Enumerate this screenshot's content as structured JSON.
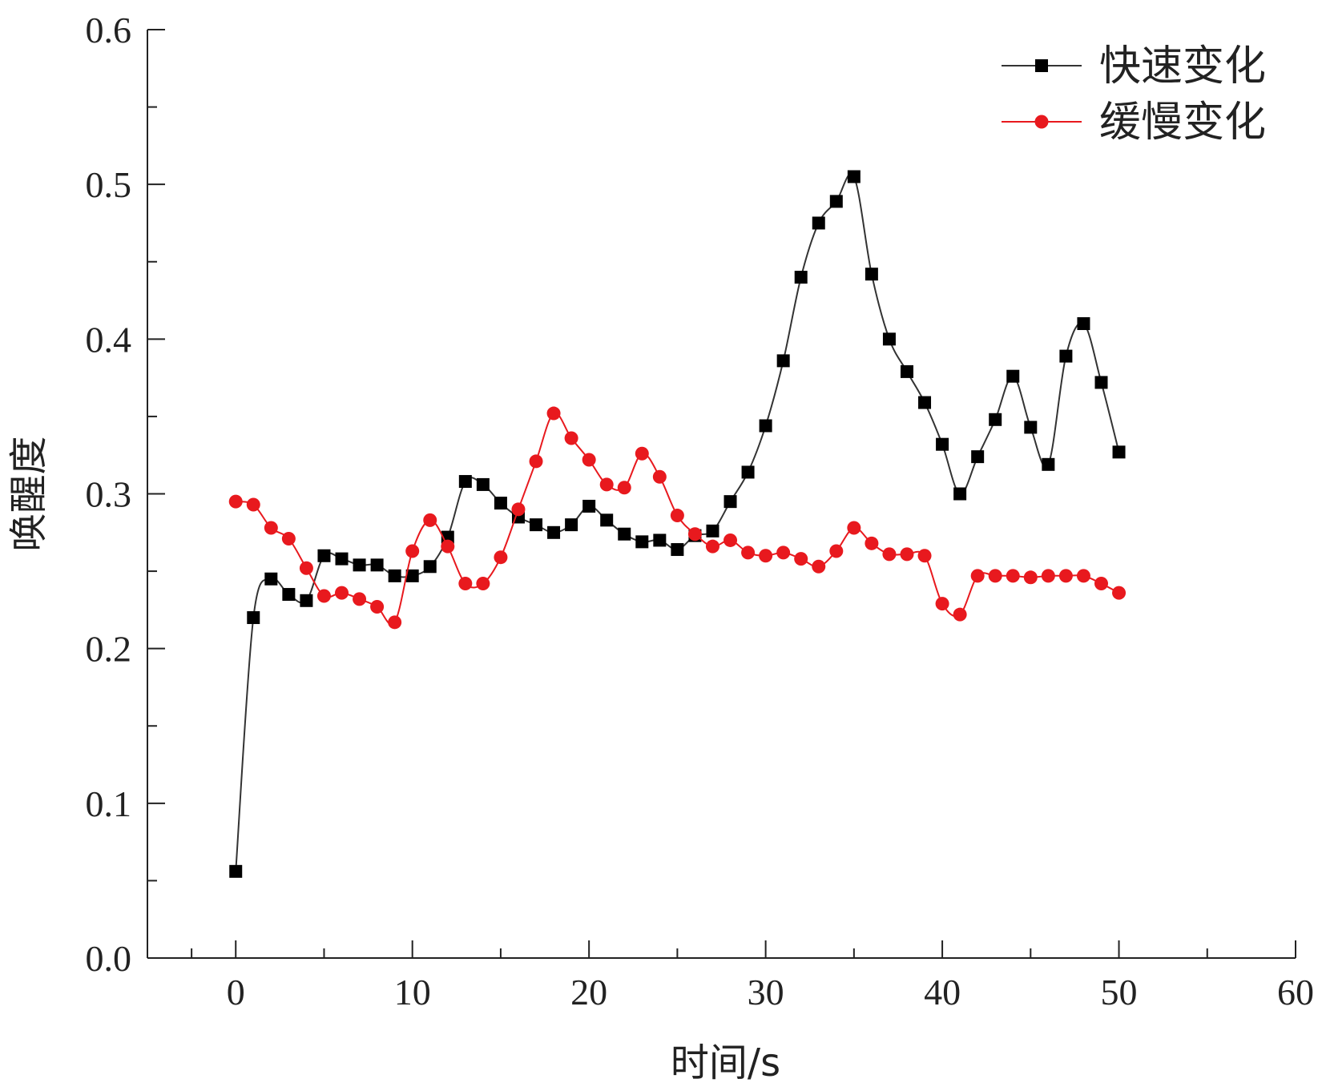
{
  "chart_data": {
    "type": "line",
    "title": "",
    "xlabel": "时间/s",
    "ylabel": "唤醒度",
    "xlim": [
      -5,
      60
    ],
    "ylim": [
      0.0,
      0.6
    ],
    "x_ticks": [
      0,
      10,
      20,
      30,
      40,
      50,
      60
    ],
    "y_ticks": [
      0.0,
      0.1,
      0.2,
      0.3,
      0.4,
      0.5,
      0.6
    ],
    "x_tick_labels": [
      "0",
      "10",
      "20",
      "30",
      "40",
      "50",
      "60"
    ],
    "y_tick_labels": [
      "0.0",
      "0.1",
      "0.2",
      "0.3",
      "0.4",
      "0.5",
      "0.6"
    ],
    "grid": false,
    "legend_position": "top-right",
    "x": [
      0,
      1,
      2,
      3,
      4,
      5,
      6,
      7,
      8,
      9,
      10,
      11,
      12,
      13,
      14,
      15,
      16,
      17,
      18,
      19,
      20,
      21,
      22,
      23,
      24,
      25,
      26,
      27,
      28,
      29,
      30,
      31,
      32,
      33,
      34,
      35,
      36,
      37,
      38,
      39,
      40,
      41,
      42,
      43,
      44,
      45,
      46,
      47,
      48,
      49,
      50
    ],
    "series": [
      {
        "name": "快速变化",
        "color": "#000000",
        "line_color": "#333333",
        "marker": "square",
        "values": [
          0.056,
          0.22,
          0.245,
          0.235,
          0.231,
          0.26,
          0.258,
          0.254,
          0.254,
          0.247,
          0.247,
          0.253,
          0.272,
          0.308,
          0.306,
          0.294,
          0.285,
          0.28,
          0.275,
          0.28,
          0.292,
          0.283,
          0.274,
          0.269,
          0.27,
          0.264,
          0.273,
          0.276,
          0.295,
          0.314,
          0.344,
          0.386,
          0.44,
          0.475,
          0.489,
          0.505,
          0.442,
          0.4,
          0.379,
          0.359,
          0.332,
          0.3,
          0.324,
          0.348,
          0.376,
          0.343,
          0.319,
          0.389,
          0.41,
          0.372,
          0.327
        ]
      },
      {
        "name": "缓慢变化",
        "color": "#e8191e",
        "line_color": "#e8191e",
        "marker": "circle",
        "values": [
          0.295,
          0.293,
          0.278,
          0.271,
          0.252,
          0.234,
          0.236,
          0.232,
          0.227,
          0.217,
          0.263,
          0.283,
          0.266,
          0.242,
          0.242,
          0.259,
          0.29,
          0.321,
          0.352,
          0.336,
          0.322,
          0.306,
          0.304,
          0.326,
          0.311,
          0.286,
          0.274,
          0.266,
          0.27,
          0.262,
          0.26,
          0.262,
          0.258,
          0.253,
          0.263,
          0.278,
          0.268,
          0.261,
          0.261,
          0.26,
          0.229,
          0.222,
          0.247,
          0.247,
          0.247,
          0.246,
          0.247,
          0.247,
          0.247,
          0.242,
          0.236
        ]
      }
    ]
  }
}
